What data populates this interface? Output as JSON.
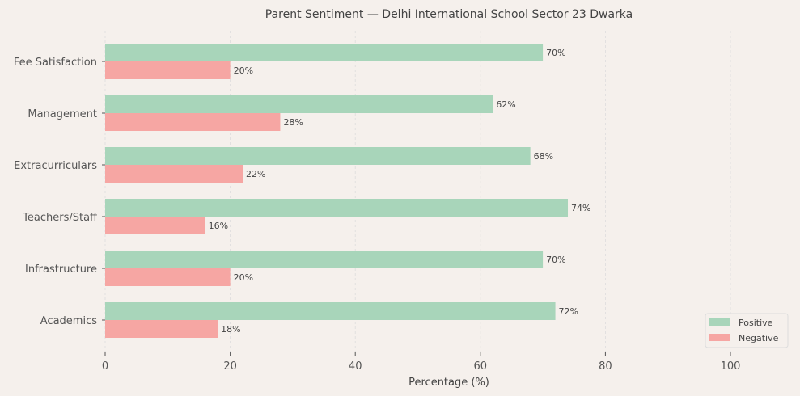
{
  "chart_data": {
    "type": "bar",
    "orientation": "horizontal",
    "title": "Parent Sentiment — Delhi International School Sector 23 Dwarka",
    "xlabel": "Percentage (%)",
    "ylabel": "",
    "xlim": [
      0,
      110
    ],
    "xticks": [
      0,
      20,
      40,
      60,
      80,
      100
    ],
    "grid": "x, dashed",
    "legend": "bottom-right",
    "categories": [
      "Academics",
      "Infrastructure",
      "Teachers/Staff",
      "Extracurriculars",
      "Management",
      "Fee Satisfaction"
    ],
    "series": [
      {
        "name": "Positive",
        "color": "#a8d5ba",
        "values": [
          72,
          70,
          74,
          68,
          62,
          70
        ]
      },
      {
        "name": "Negative",
        "color": "#f6a6a3",
        "values": [
          18,
          20,
          16,
          22,
          28,
          20
        ]
      }
    ],
    "value_suffix": "%"
  }
}
